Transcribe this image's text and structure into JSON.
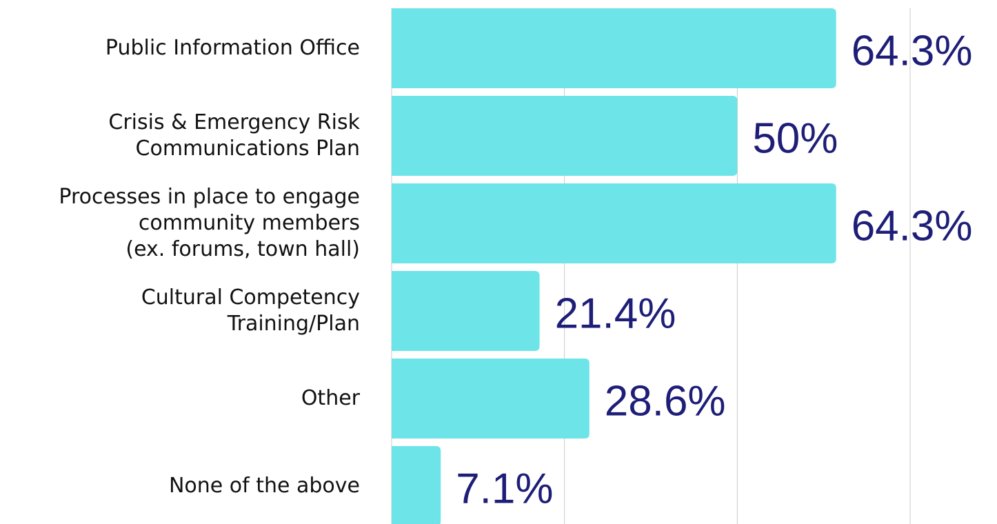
{
  "chart_data": {
    "type": "bar",
    "orientation": "horizontal",
    "categories": [
      "Public Information Office",
      "Crisis & Emergency Risk\nCommunications Plan",
      "Processes in place to engage\ncommunity members \n(ex. forums, town hall)",
      "Cultural Competency\nTraining/Plan",
      "Other",
      "None of the above"
    ],
    "values": [
      64.3,
      50,
      64.3,
      21.4,
      28.6,
      7.1
    ],
    "value_labels": [
      "64.3%",
      "50%",
      "64.3%",
      "21.4%",
      "28.6%",
      "7.1%"
    ],
    "color": "#6ce4e8",
    "label_color": "#1e1e78",
    "xlim": [
      0,
      75
    ],
    "xticks": [
      0,
      25,
      50,
      75
    ],
    "grid": true
  }
}
